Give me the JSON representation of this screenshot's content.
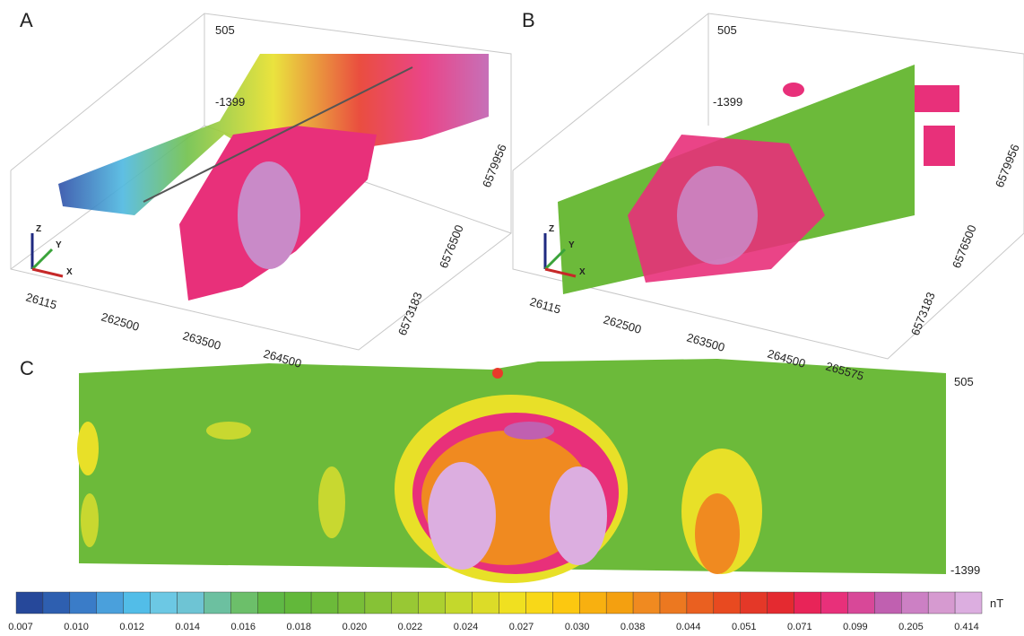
{
  "panels": [
    {
      "label": "A",
      "z_top": "505",
      "z_bottom": "-1399",
      "x_labels": [
        "26115",
        "262500",
        "263500",
        "264500"
      ],
      "y_labels": [
        "6573183",
        "6576500",
        "6579956"
      ],
      "axes": [
        "Z",
        "Y",
        "X"
      ]
    },
    {
      "label": "B",
      "z_top": "505",
      "z_bottom": "-1399",
      "x_labels": [
        "26115",
        "262500",
        "263500",
        "264500",
        "265575"
      ],
      "y_labels": [
        "6573183",
        "6576500",
        "6579956"
      ],
      "axes": [
        "Z",
        "Y",
        "X"
      ]
    },
    {
      "label": "C",
      "depth_top": "505",
      "depth_bottom": "-1399"
    }
  ],
  "colorbar": {
    "unit": "nT",
    "labels": [
      "0.007",
      "0.010",
      "0.012",
      "0.014",
      "0.016",
      "0.018",
      "0.020",
      "0.022",
      "0.024",
      "0.027",
      "0.030",
      "0.038",
      "0.044",
      "0.051",
      "0.071",
      "0.099",
      "0.205",
      "0.414"
    ]
  }
}
